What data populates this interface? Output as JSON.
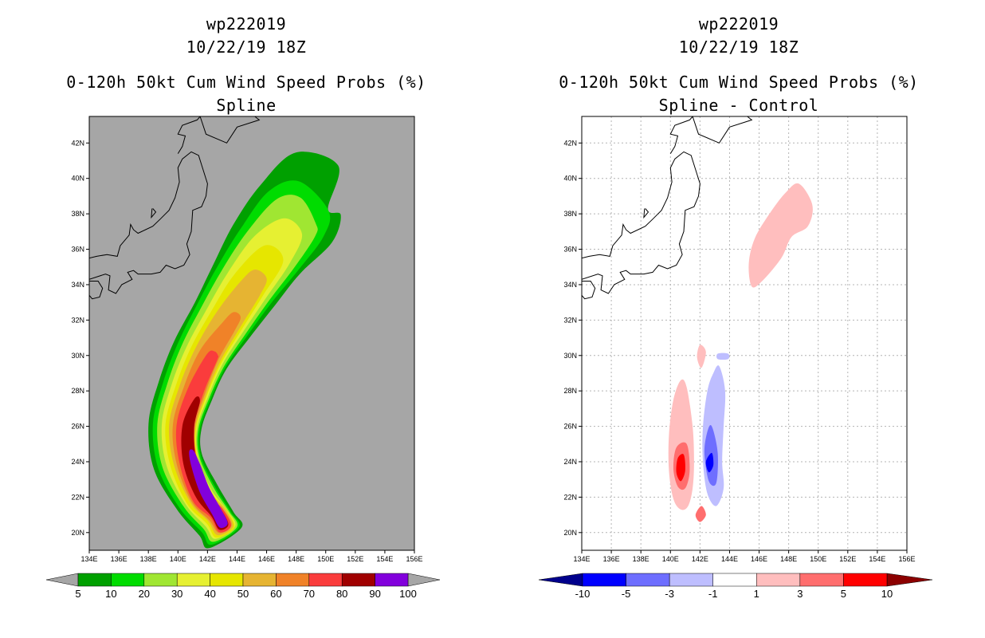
{
  "chart_data": [
    {
      "type": "heatmap",
      "id": "wp222019",
      "date": "10/22/19 18Z",
      "title": "0-120h 50kt Cum Wind Speed Probs (%)",
      "subtitle": "Spline",
      "x_ticks": [
        "134E",
        "136E",
        "138E",
        "140E",
        "142E",
        "144E",
        "146E",
        "148E",
        "150E",
        "152E",
        "154E",
        "156E"
      ],
      "y_ticks": [
        "20N",
        "22N",
        "24N",
        "26N",
        "28N",
        "30N",
        "32N",
        "34N",
        "36N",
        "38N",
        "40N",
        "42N"
      ],
      "xlim": [
        134,
        156
      ],
      "ylim": [
        19,
        43.5
      ],
      "background_color": "#a6a6a6",
      "colorbar": {
        "labels": [
          "5",
          "10",
          "20",
          "30",
          "40",
          "50",
          "60",
          "70",
          "80",
          "90",
          "100"
        ],
        "colors": [
          "#00a000",
          "#00dc00",
          "#a0e632",
          "#e6f032",
          "#e6e600",
          "#e6b432",
          "#f08228",
          "#fa3c3c",
          "#a00000",
          "#8200dc"
        ],
        "extend_colors": [
          "#a6a6a6",
          "#a6a6a6"
        ]
      },
      "features": [
        {
          "level": 5,
          "color": "#00a000",
          "track": [
            [
              143.2,
              19.7
            ],
            [
              142.6,
              20.5
            ],
            [
              141.3,
              22
            ],
            [
              140,
              24
            ],
            [
              139.8,
              26
            ],
            [
              140.5,
              28
            ],
            [
              141.5,
              30
            ],
            [
              143,
              32
            ],
            [
              144.5,
              34
            ],
            [
              146,
              36
            ],
            [
              148,
              38
            ],
            [
              149.5,
              39.7
            ],
            [
              150.5,
              39.5
            ]
          ],
          "width": [
            1.3,
            1.4,
            1.6,
            1.7,
            1.8,
            1.9,
            2.0,
            2.2,
            2.5,
            2.8,
            3.1,
            2.6,
            1.5
          ]
        },
        {
          "level": 10,
          "color": "#00dc00",
          "track": [
            [
              143.2,
              19.8
            ],
            [
              142.6,
              20.6
            ],
            [
              141.3,
              22
            ],
            [
              140.1,
              24
            ],
            [
              139.9,
              26
            ],
            [
              140.6,
              28
            ],
            [
              141.6,
              30
            ],
            [
              143,
              32
            ],
            [
              144.5,
              34
            ],
            [
              146.2,
              36
            ],
            [
              148,
              38
            ],
            [
              149.2,
              39
            ]
          ],
          "width": [
            1.1,
            1.2,
            1.4,
            1.5,
            1.6,
            1.7,
            1.8,
            2.0,
            2.2,
            2.4,
            2.4,
            1.4
          ]
        },
        {
          "level": 20,
          "color": "#a0e632",
          "track": [
            [
              143.2,
              19.9
            ],
            [
              142.6,
              20.7
            ],
            [
              141.4,
              22
            ],
            [
              140.2,
              24
            ],
            [
              140,
              26
            ],
            [
              140.7,
              28
            ],
            [
              141.7,
              30
            ],
            [
              143.1,
              32
            ],
            [
              144.6,
              34
            ],
            [
              146.3,
              36
            ],
            [
              148,
              37.8
            ],
            [
              148.8,
              38.2
            ]
          ],
          "width": [
            0.95,
            1.05,
            1.2,
            1.3,
            1.4,
            1.5,
            1.6,
            1.75,
            1.9,
            2.0,
            1.8,
            1.0
          ]
        },
        {
          "level": 30,
          "color": "#e6f032",
          "track": [
            [
              143.2,
              20
            ],
            [
              142.6,
              20.8
            ],
            [
              141.4,
              22
            ],
            [
              140.3,
              24
            ],
            [
              140.1,
              26
            ],
            [
              140.8,
              28
            ],
            [
              141.8,
              30
            ],
            [
              143.2,
              32
            ],
            [
              144.7,
              34
            ],
            [
              146.4,
              36
            ],
            [
              147.8,
              37.3
            ]
          ],
          "width": [
            0.8,
            0.9,
            1.0,
            1.1,
            1.2,
            1.3,
            1.35,
            1.45,
            1.55,
            1.5,
            0.8
          ]
        },
        {
          "level": 40,
          "color": "#e6e600",
          "track": [
            [
              143.2,
              20
            ],
            [
              142.6,
              20.9
            ],
            [
              141.4,
              22
            ],
            [
              140.4,
              24
            ],
            [
              140.2,
              26
            ],
            [
              140.9,
              28
            ],
            [
              141.9,
              30
            ],
            [
              143.3,
              32
            ],
            [
              144.8,
              34
            ],
            [
              146.5,
              35.8
            ]
          ],
          "width": [
            0.7,
            0.8,
            0.9,
            0.95,
            1.05,
            1.1,
            1.15,
            1.2,
            1.2,
            0.8
          ]
        },
        {
          "level": 50,
          "color": "#e6b432",
          "track": [
            [
              143.2,
              20.1
            ],
            [
              142.6,
              21
            ],
            [
              141.5,
              22
            ],
            [
              140.5,
              24
            ],
            [
              140.3,
              26
            ],
            [
              141,
              28
            ],
            [
              142,
              30
            ],
            [
              143.4,
              32
            ],
            [
              144.9,
              33.8
            ],
            [
              145.6,
              34.6
            ]
          ],
          "width": [
            0.6,
            0.7,
            0.75,
            0.8,
            0.9,
            0.95,
            0.95,
            0.95,
            0.8,
            0.5
          ]
        },
        {
          "level": 60,
          "color": "#f08228",
          "track": [
            [
              143.2,
              20.2
            ],
            [
              142.6,
              21
            ],
            [
              141.5,
              22
            ],
            [
              140.6,
              24
            ],
            [
              140.4,
              26
            ],
            [
              141.1,
              28
            ],
            [
              142.1,
              30
            ],
            [
              143.4,
              31.6
            ],
            [
              144,
              32.3
            ]
          ],
          "width": [
            0.5,
            0.6,
            0.65,
            0.7,
            0.75,
            0.75,
            0.7,
            0.5,
            0.3
          ]
        },
        {
          "level": 70,
          "color": "#fa3c3c",
          "track": [
            [
              143.2,
              20.2
            ],
            [
              142.6,
              21.1
            ],
            [
              141.5,
              22
            ],
            [
              140.7,
              24
            ],
            [
              140.5,
              26
            ],
            [
              141.2,
              28
            ],
            [
              142.3,
              29.9
            ],
            [
              142.6,
              30.1
            ]
          ],
          "width": [
            0.45,
            0.5,
            0.55,
            0.6,
            0.6,
            0.55,
            0.4,
            0.2
          ]
        },
        {
          "level": 80,
          "color": "#a00000",
          "track": [
            [
              143.1,
              20.3
            ],
            [
              142.6,
              21.1
            ],
            [
              141.6,
              22.2
            ],
            [
              140.8,
              24
            ],
            [
              140.7,
              26
            ],
            [
              141.3,
              27.5
            ]
          ],
          "width": [
            0.35,
            0.4,
            0.45,
            0.45,
            0.4,
            0.2
          ]
        },
        {
          "level": 90,
          "color": "#8200dc",
          "track": [
            [
              143.1,
              20.4
            ],
            [
              142.6,
              21.2
            ],
            [
              141.8,
              22.4
            ],
            [
              141.2,
              23.8
            ],
            [
              140.9,
              24.6
            ]
          ],
          "width": [
            0.3,
            0.35,
            0.35,
            0.3,
            0.15
          ]
        }
      ]
    },
    {
      "type": "heatmap",
      "id": "wp222019",
      "date": "10/22/19 18Z",
      "title": "0-120h 50kt Cum Wind Speed Probs (%)",
      "subtitle": "Spline - Control",
      "x_ticks": [
        "134E",
        "136E",
        "138E",
        "140E",
        "142E",
        "144E",
        "146E",
        "148E",
        "150E",
        "152E",
        "154E",
        "156E"
      ],
      "y_ticks": [
        "20N",
        "22N",
        "24N",
        "26N",
        "28N",
        "30N",
        "32N",
        "34N",
        "36N",
        "38N",
        "40N",
        "42N"
      ],
      "xlim": [
        134,
        156
      ],
      "ylim": [
        19,
        43.5
      ],
      "background_color": "#ffffff",
      "grid": true,
      "colorbar": {
        "labels": [
          "-10",
          "-5",
          "-3",
          "-1",
          "1",
          "3",
          "5",
          "10"
        ],
        "colors": [
          "#0000ff",
          "#6e6eff",
          "#bebeff",
          "#ffffff",
          "#ffbebe",
          "#ff6e6e",
          "#ff0000"
        ],
        "extend_colors": [
          "#00008c",
          "#8c0000"
        ]
      },
      "features": [
        {
          "level": 1,
          "color": "#ffbebe",
          "blob": [
            [
              148.7,
              39.7
            ],
            [
              149.6,
              38.5
            ],
            [
              149.3,
              37.3
            ],
            [
              148.2,
              36.7
            ],
            [
              147.5,
              35.5
            ],
            [
              146.2,
              34.2
            ],
            [
              145.5,
              33.9
            ],
            [
              145.3,
              35.2
            ],
            [
              145.7,
              36.6
            ],
            [
              146.7,
              38
            ],
            [
              147.8,
              39.2
            ]
          ]
        },
        {
          "level": 1,
          "color": "#ffbebe",
          "blob": [
            [
              141.1,
              28.2
            ],
            [
              141.5,
              26
            ],
            [
              141.6,
              24
            ],
            [
              141.5,
              22.5
            ],
            [
              141.2,
              21.5
            ],
            [
              140.7,
              21.3
            ],
            [
              140.2,
              21.9
            ],
            [
              139.9,
              23.5
            ],
            [
              139.9,
              25.5
            ],
            [
              140.2,
              27.5
            ],
            [
              140.7,
              28.6
            ]
          ]
        },
        {
          "level": 1,
          "color": "#ffbebe",
          "blob": [
            [
              142,
              30.6
            ],
            [
              142.4,
              30.2
            ],
            [
              142.1,
              29.3
            ],
            [
              141.8,
              29.9
            ]
          ]
        },
        {
          "level": 3,
          "color": "#ff6e6e",
          "blob": [
            [
              141.1,
              25
            ],
            [
              141.3,
              23.5
            ],
            [
              141,
              22.5
            ],
            [
              140.5,
              22.6
            ],
            [
              140.2,
              23.6
            ],
            [
              140.4,
              24.8
            ]
          ]
        },
        {
          "level": 5,
          "color": "#ff0000",
          "blob": [
            [
              140.9,
              24.4
            ],
            [
              141,
              23.5
            ],
            [
              140.7,
              22.9
            ],
            [
              140.4,
              23.4
            ],
            [
              140.5,
              24.2
            ]
          ]
        },
        {
          "level": 3,
          "color": "#ff6e6e",
          "blob": [
            [
              142.1,
              21.5
            ],
            [
              142.4,
              21
            ],
            [
              142,
              20.6
            ],
            [
              141.7,
              21
            ]
          ]
        },
        {
          "level": -1,
          "color": "#bebeff",
          "blob": [
            [
              143.3,
              29.4
            ],
            [
              143.7,
              28
            ],
            [
              143.6,
              26
            ],
            [
              143.5,
              24
            ],
            [
              143.6,
              22.5
            ],
            [
              143.1,
              21.5
            ],
            [
              142.5,
              22.2
            ],
            [
              142.2,
              24
            ],
            [
              142.2,
              26
            ],
            [
              142.5,
              28
            ],
            [
              142.9,
              29
            ]
          ]
        },
        {
          "level": -1,
          "color": "#bebeff",
          "blob": [
            [
              143.2,
              30.1
            ],
            [
              143.9,
              30.1
            ],
            [
              143.9,
              29.8
            ],
            [
              143.2,
              29.8
            ]
          ]
        },
        {
          "level": -3,
          "color": "#6e6eff",
          "blob": [
            [
              142.8,
              26
            ],
            [
              143.2,
              24.5
            ],
            [
              143.1,
              22.8
            ],
            [
              142.6,
              22.9
            ],
            [
              142.3,
              24.5
            ],
            [
              142.5,
              25.7
            ]
          ]
        },
        {
          "level": -5,
          "color": "#0000ff",
          "blob": [
            [
              142.8,
              24.5
            ],
            [
              142.9,
              23.8
            ],
            [
              142.6,
              23.4
            ],
            [
              142.4,
              24
            ]
          ]
        }
      ]
    }
  ]
}
